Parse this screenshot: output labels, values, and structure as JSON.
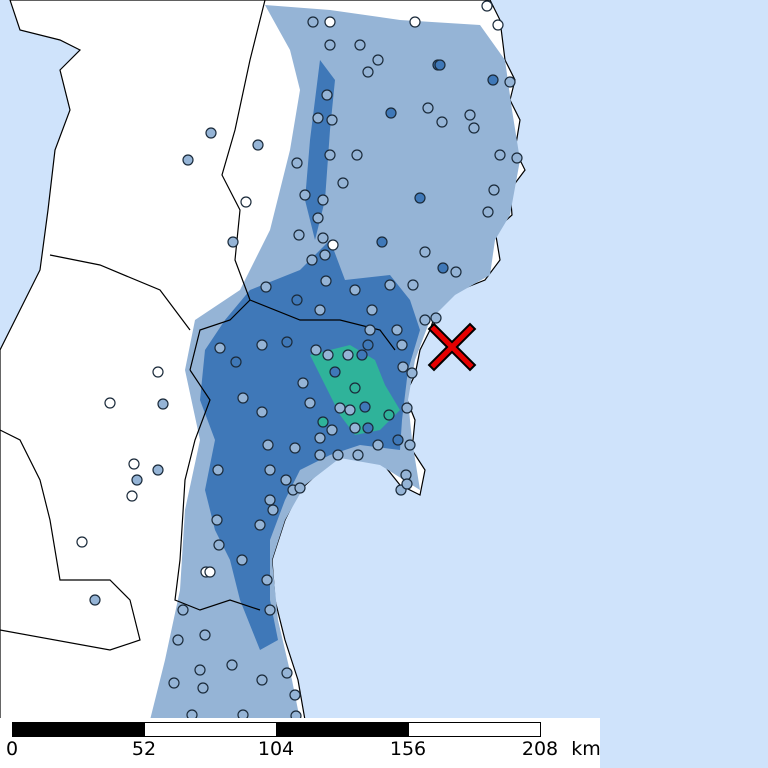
{
  "colors": {
    "ocean": "#cfe3fb",
    "land": "#ffffff",
    "intensity_low": "#95b4d6",
    "intensity_mid": "#3f78b8",
    "intensity_high": "#2fb39a",
    "epicenter": "#e60000"
  },
  "epicenter": {
    "icon": "x-mark-icon"
  },
  "scale_bar": {
    "labels": [
      "0",
      "52",
      "104",
      "156",
      "208"
    ],
    "unit": "km"
  }
}
